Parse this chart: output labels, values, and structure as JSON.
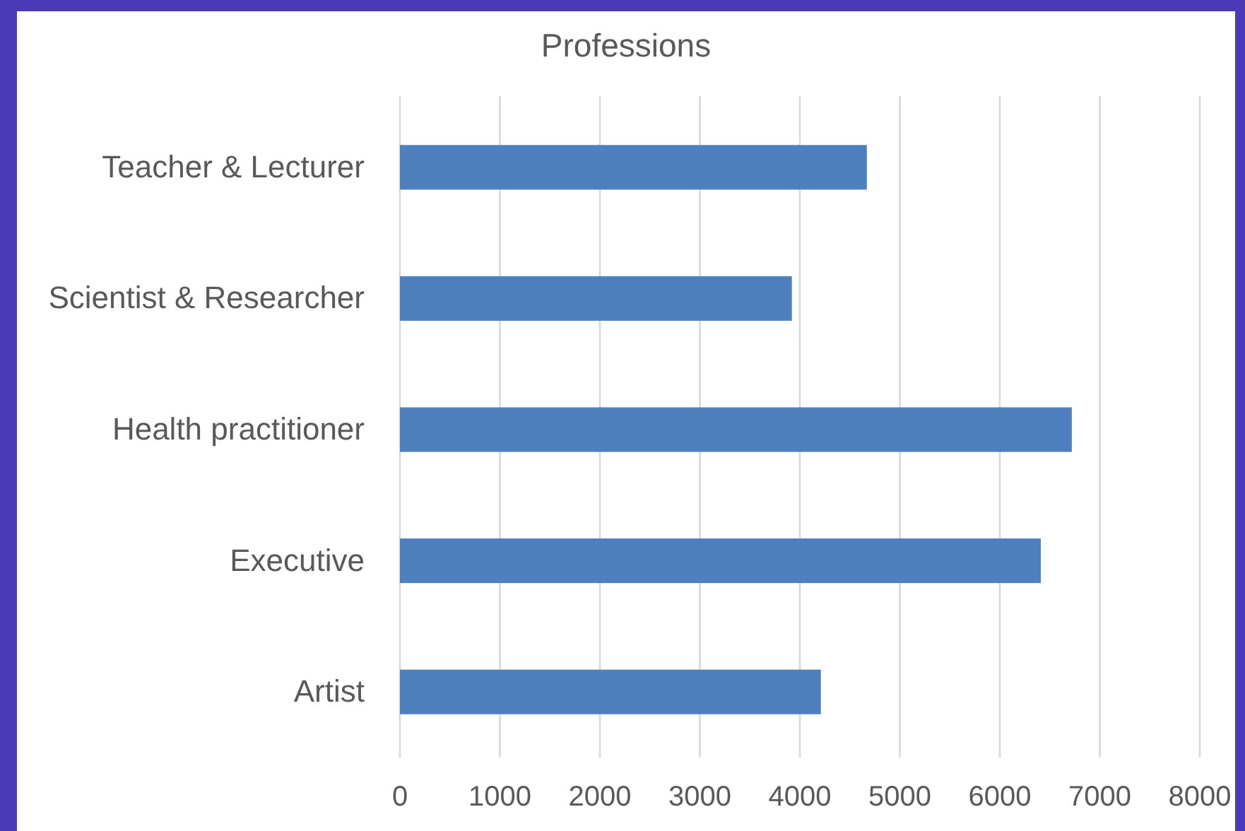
{
  "chart_data": {
    "type": "bar",
    "orientation": "horizontal",
    "title": "Professions",
    "categories": [
      "Teacher & Lecturer",
      "Scientist & Researcher",
      "Health practitioner",
      "Executive",
      "Artist"
    ],
    "values": [
      4670,
      3920,
      6720,
      6410,
      4210
    ],
    "color": "#4e7fbf",
    "xlim": [
      0,
      8000
    ],
    "xticks": [
      0,
      1000,
      2000,
      3000,
      4000,
      5000,
      6000,
      7000,
      8000
    ],
    "grid": "x"
  }
}
